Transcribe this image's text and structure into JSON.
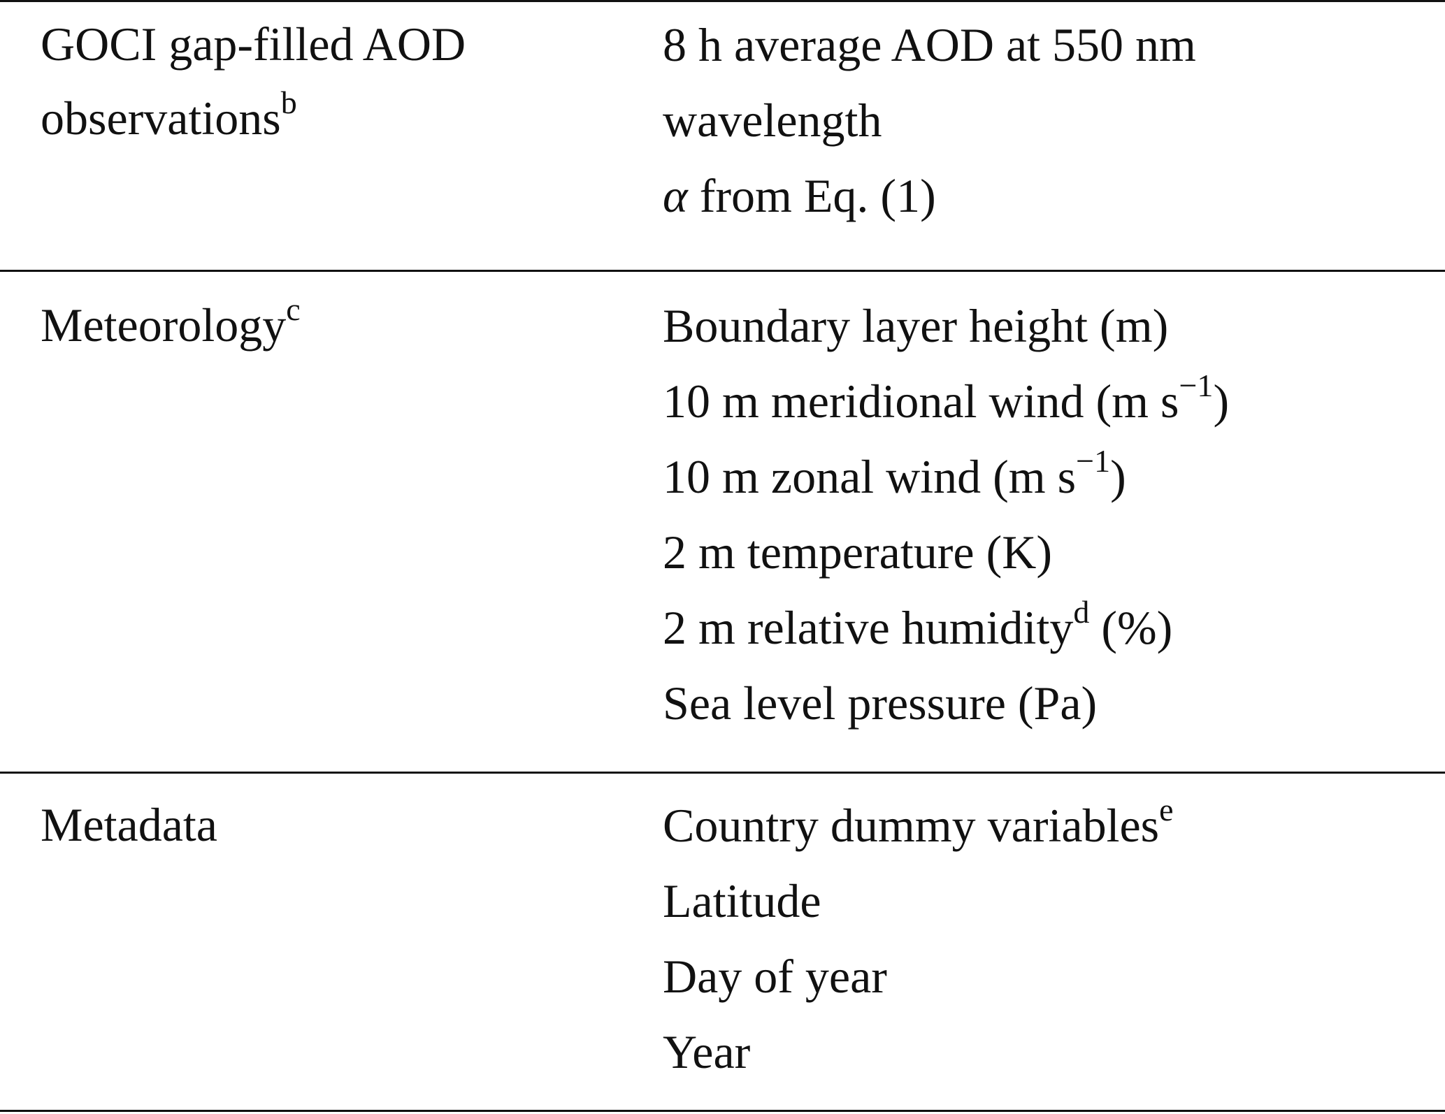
{
  "table": {
    "groups": [
      {
        "category": {
          "lines": [
            "GOCI gap-filled AOD",
            "observations"
          ],
          "sup": "b"
        },
        "items": [
          {
            "text": "8 h average AOD at 550 nm"
          },
          {
            "text": "wavelength"
          },
          {
            "symbol": "α",
            "text": " from Eq. (1)"
          }
        ]
      },
      {
        "category": {
          "lines": [
            "Meteorology"
          ],
          "sup": "c"
        },
        "items": [
          {
            "text": "Boundary layer height (m)"
          },
          {
            "pre": "10 m meridional wind (m s",
            "sup": "−1",
            "post": ")"
          },
          {
            "pre": "10 m zonal wind (m s",
            "sup": "−1",
            "post": ")"
          },
          {
            "text": "2 m temperature (K)"
          },
          {
            "pre": "2 m relative humidity",
            "sup": "d",
            "post": " (%)"
          },
          {
            "text": "Sea level pressure (Pa)"
          }
        ]
      },
      {
        "category": {
          "lines": [
            "Metadata"
          ]
        },
        "items": [
          {
            "pre": "Country dummy variables",
            "sup": "e",
            "post": ""
          },
          {
            "text": "Latitude"
          },
          {
            "text": "Day of year"
          },
          {
            "text": "Year"
          }
        ]
      }
    ]
  }
}
